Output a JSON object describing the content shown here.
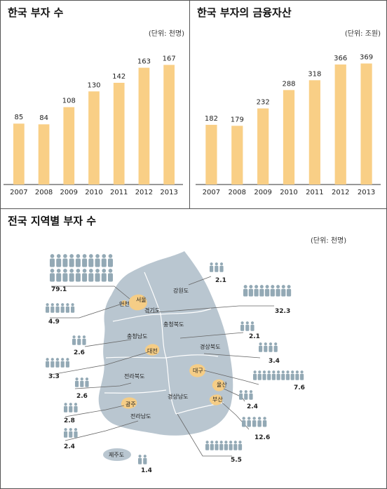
{
  "chart_data": [
    {
      "type": "bar",
      "title": "한국 부자 수",
      "unit": "(단위: 천명)",
      "categories": [
        "2007",
        "2008",
        "2009",
        "2010",
        "2011",
        "2012",
        "2013"
      ],
      "values": [
        85,
        84,
        108,
        130,
        142,
        163,
        167
      ],
      "ylim": [
        0,
        190
      ],
      "color": "#F9CF86"
    },
    {
      "type": "bar",
      "title": "한국 부자의 금융자산",
      "unit": "(단위: 조원)",
      "categories": [
        "2007",
        "2008",
        "2009",
        "2010",
        "2011",
        "2012",
        "2013"
      ],
      "values": [
        182,
        179,
        232,
        288,
        318,
        366,
        369
      ],
      "ylim": [
        0,
        415
      ],
      "color": "#F9CF86"
    }
  ],
  "map": {
    "title": "전국 지역별 부자 수",
    "unit": "(단위: 천명)",
    "colors": {
      "land": "#B9C6D0",
      "city": "#F5CD86",
      "people": "#93A9B5",
      "border": "#fff"
    },
    "regions": [
      {
        "name": "서울",
        "value": "79.1"
      },
      {
        "name": "인천",
        "value": "4.9"
      },
      {
        "name": "경기도",
        "value": "32.3"
      },
      {
        "name": "강원도",
        "value": "2.1"
      },
      {
        "name": "충청북도",
        "value": "2.1"
      },
      {
        "name": "충청남도",
        "value": "2.6"
      },
      {
        "name": "대전",
        "value": "3.3"
      },
      {
        "name": "경상북도",
        "value": "3.4"
      },
      {
        "name": "대구",
        "value": "7.6"
      },
      {
        "name": "울산",
        "value": "2.4"
      },
      {
        "name": "부산",
        "value": "12.6"
      },
      {
        "name": "전라북도",
        "value": "2.6"
      },
      {
        "name": "광주",
        "value": "2.8"
      },
      {
        "name": "전라남도",
        "value": "2.4"
      },
      {
        "name": "경상남도",
        "value": "5.5"
      },
      {
        "name": "제주도",
        "value": "1.4"
      }
    ]
  }
}
